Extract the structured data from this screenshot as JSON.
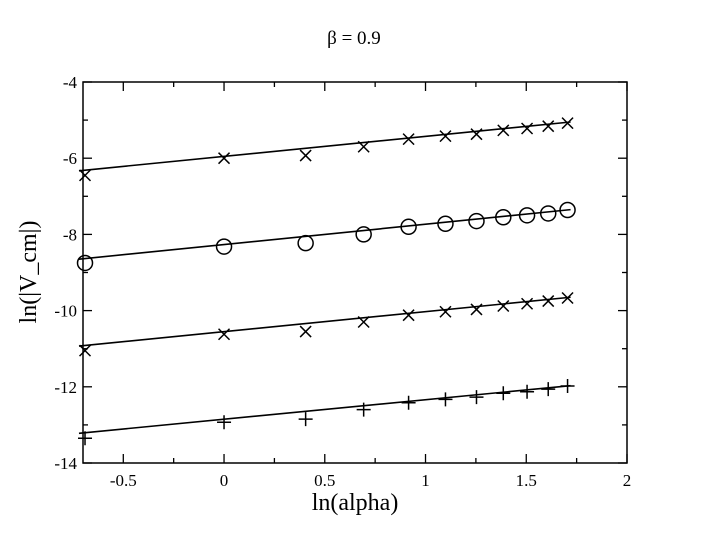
{
  "chart_data": {
    "type": "scatter",
    "title": "β = 0.9",
    "xlabel": "ln(alpha)",
    "ylabel": "ln(|V_cm|)",
    "xlim": [
      -0.7,
      2.0
    ],
    "ylim": [
      -14,
      -4
    ],
    "x_ticks": [
      {
        "value": -0.5,
        "label": "-0.5"
      },
      {
        "value": 0,
        "label": "0"
      },
      {
        "value": 0.5,
        "label": "0.5"
      },
      {
        "value": 1,
        "label": "1"
      },
      {
        "value": 1.5,
        "label": "1.5"
      },
      {
        "value": 2,
        "label": "2"
      }
    ],
    "y_ticks": [
      {
        "value": -14,
        "label": "-14"
      },
      {
        "value": -12,
        "label": "-12"
      },
      {
        "value": -10,
        "label": "-10"
      },
      {
        "value": -8,
        "label": "-8"
      },
      {
        "value": -6,
        "label": "-6"
      },
      {
        "value": -4,
        "label": "-4"
      }
    ],
    "grid": false,
    "legend": "none",
    "series": [
      {
        "marker": "x",
        "x": [
          -0.69,
          0.0,
          0.405,
          0.693,
          0.916,
          1.099,
          1.253,
          1.386,
          1.504,
          1.609,
          1.705
        ],
        "y": [
          -6.45,
          -6.0,
          -5.93,
          -5.7,
          -5.5,
          -5.42,
          -5.37,
          -5.27,
          -5.22,
          -5.16,
          -5.08
        ],
        "fit": [
          [
            -0.72,
            -6.33
          ],
          [
            1.72,
            -5.05
          ]
        ]
      },
      {
        "marker": "circle",
        "x": [
          -0.69,
          0.0,
          0.405,
          0.693,
          0.916,
          1.099,
          1.253,
          1.386,
          1.504,
          1.609,
          1.705
        ],
        "y": [
          -8.75,
          -8.32,
          -8.23,
          -8.0,
          -7.8,
          -7.72,
          -7.65,
          -7.55,
          -7.5,
          -7.45,
          -7.36
        ],
        "fit": [
          [
            -0.72,
            -8.65
          ],
          [
            1.72,
            -7.35
          ]
        ]
      },
      {
        "marker": "x",
        "x": [
          -0.69,
          0.0,
          0.405,
          0.693,
          0.916,
          1.099,
          1.253,
          1.386,
          1.504,
          1.609,
          1.705
        ],
        "y": [
          -11.05,
          -10.62,
          -10.55,
          -10.3,
          -10.12,
          -10.03,
          -9.97,
          -9.88,
          -9.82,
          -9.75,
          -9.67
        ],
        "fit": [
          [
            -0.72,
            -10.93
          ],
          [
            1.72,
            -9.65
          ]
        ]
      },
      {
        "marker": "plus",
        "x": [
          -0.69,
          0.0,
          0.405,
          0.693,
          0.916,
          1.099,
          1.253,
          1.386,
          1.504,
          1.609,
          1.705
        ],
        "y": [
          -13.35,
          -12.93,
          -12.85,
          -12.6,
          -12.42,
          -12.33,
          -12.27,
          -12.17,
          -12.13,
          -12.06,
          -11.98
        ],
        "fit": [
          [
            -0.72,
            -13.22
          ],
          [
            1.72,
            -11.97
          ]
        ]
      }
    ]
  }
}
